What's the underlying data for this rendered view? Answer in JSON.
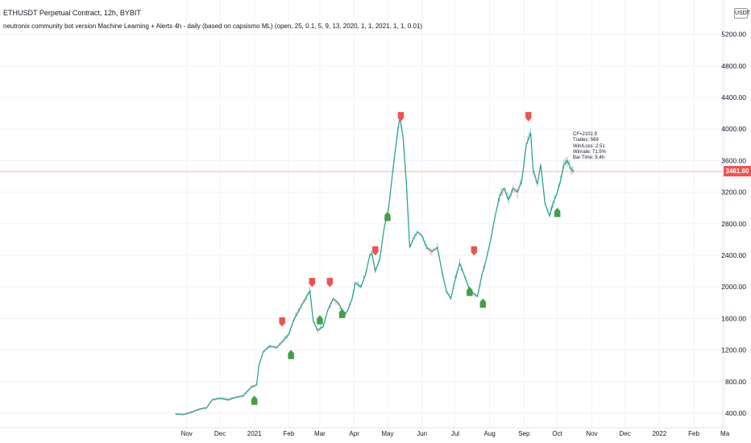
{
  "header": {
    "title": "ETHUSDT Perpetual Contract, 12h, BYBIT",
    "subtitle": "neutronix community bot version Machine Learning + Alerts 4h - daily (based on capsismo ML) (open, 25, 0.1, 5, 9, 13, 2020, 1, 1, 2021, 1, 1, 0.01)"
  },
  "axis": {
    "currency": "USDT",
    "last_price": "3461.60"
  },
  "stats": [
    "CF=2102.9",
    "Trades: 569",
    "Win/Loss: 2.51",
    "Winrate: 71.5%",
    "Bar Time: 5.4h"
  ],
  "colors": {
    "price_line": "#26a69a",
    "candle_down": "#ef5350",
    "sell_marker": "#ef5350",
    "buy_marker": "#43a047",
    "last_price_line": "#ef5350",
    "grid": "#f0f3fa"
  },
  "chart_data": {
    "type": "line",
    "xlabel": "",
    "ylabel": "",
    "ylim": [
      350,
      5250
    ],
    "y_ticks": [
      400,
      800,
      1200,
      1600,
      2000,
      2400,
      2800,
      3200,
      3600,
      4000,
      4400,
      4800,
      5200
    ],
    "y_tick_labels": [
      "400.00",
      "800.00",
      "1200.00",
      "1600.00",
      "2000.00",
      "2400.00",
      "2800.00",
      "3200.00",
      "3600.00",
      "4000.00",
      "4400.00",
      "4800.00",
      "5200.00"
    ],
    "x_ticks": [
      "2020-11-01",
      "2020-12-01",
      "2021-01-01",
      "2021-02-01",
      "2021-03-01",
      "2021-04-01",
      "2021-05-01",
      "2021-06-01",
      "2021-07-01",
      "2021-08-01",
      "2021-09-01",
      "2021-10-01",
      "2021-11-01",
      "2021-12-01",
      "2022-01-01",
      "2022-02-01",
      "2022-03-01"
    ],
    "x_tick_labels": [
      "Nov",
      "Dec",
      "2021",
      "Feb",
      "Mar",
      "Apr",
      "May",
      "Jun",
      "Jul",
      "Aug",
      "Sep",
      "Oct",
      "Nov",
      "Dec",
      "2022",
      "Feb",
      "Ma"
    ],
    "grid": true,
    "last_price": 3461.6,
    "series": [
      {
        "values": [
          [
            "2020-10-22",
            390
          ],
          [
            "2020-10-29",
            385
          ],
          [
            "2020-11-05",
            410
          ],
          [
            "2020-11-12",
            450
          ],
          [
            "2020-11-19",
            470
          ],
          [
            "2020-11-24",
            570
          ],
          [
            "2020-12-01",
            590
          ],
          [
            "2020-12-08",
            570
          ],
          [
            "2020-12-15",
            600
          ],
          [
            "2020-12-22",
            620
          ],
          [
            "2020-12-29",
            730
          ],
          [
            "2021-01-03",
            760
          ],
          [
            "2021-01-05",
            1000
          ],
          [
            "2021-01-09",
            1180
          ],
          [
            "2021-01-15",
            1250
          ],
          [
            "2021-01-21",
            1230
          ],
          [
            "2021-01-27",
            1320
          ],
          [
            "2021-02-01",
            1400
          ],
          [
            "2021-02-06",
            1600
          ],
          [
            "2021-02-12",
            1750
          ],
          [
            "2021-02-18",
            1900
          ],
          [
            "2021-02-20",
            1950
          ],
          [
            "2021-02-23",
            1570
          ],
          [
            "2021-02-27",
            1450
          ],
          [
            "2021-03-04",
            1500
          ],
          [
            "2021-03-08",
            1700
          ],
          [
            "2021-03-13",
            1850
          ],
          [
            "2021-03-18",
            1790
          ],
          [
            "2021-03-23",
            1640
          ],
          [
            "2021-03-26",
            1700
          ],
          [
            "2021-03-30",
            1850
          ],
          [
            "2021-04-02",
            2050
          ],
          [
            "2021-04-07",
            2000
          ],
          [
            "2021-04-11",
            2150
          ],
          [
            "2021-04-15",
            2400
          ],
          [
            "2021-04-17",
            2420
          ],
          [
            "2021-04-20",
            2200
          ],
          [
            "2021-04-24",
            2350
          ],
          [
            "2021-04-28",
            2750
          ],
          [
            "2021-05-02",
            3000
          ],
          [
            "2021-05-06",
            3500
          ],
          [
            "2021-05-09",
            3850
          ],
          [
            "2021-05-12",
            4150
          ],
          [
            "2021-05-15",
            3900
          ],
          [
            "2021-05-18",
            3300
          ],
          [
            "2021-05-21",
            2500
          ],
          [
            "2021-05-24",
            2600
          ],
          [
            "2021-05-28",
            2700
          ],
          [
            "2021-06-01",
            2650
          ],
          [
            "2021-06-05",
            2500
          ],
          [
            "2021-06-10",
            2450
          ],
          [
            "2021-06-15",
            2500
          ],
          [
            "2021-06-19",
            2200
          ],
          [
            "2021-06-23",
            1950
          ],
          [
            "2021-06-27",
            1850
          ],
          [
            "2021-07-01",
            2100
          ],
          [
            "2021-07-05",
            2300
          ],
          [
            "2021-07-09",
            2150
          ],
          [
            "2021-07-13",
            2000
          ],
          [
            "2021-07-17",
            1920
          ],
          [
            "2021-07-21",
            1880
          ],
          [
            "2021-07-25",
            2150
          ],
          [
            "2021-07-29",
            2350
          ],
          [
            "2021-08-02",
            2600
          ],
          [
            "2021-08-06",
            2900
          ],
          [
            "2021-08-10",
            3150
          ],
          [
            "2021-08-14",
            3250
          ],
          [
            "2021-08-18",
            3100
          ],
          [
            "2021-08-22",
            3250
          ],
          [
            "2021-08-26",
            3200
          ],
          [
            "2021-08-30",
            3350
          ],
          [
            "2021-09-03",
            3800
          ],
          [
            "2021-09-07",
            3950
          ],
          [
            "2021-09-09",
            3500
          ],
          [
            "2021-09-13",
            3300
          ],
          [
            "2021-09-16",
            3550
          ],
          [
            "2021-09-20",
            3050
          ],
          [
            "2021-09-24",
            2900
          ],
          [
            "2021-09-27",
            3050
          ],
          [
            "2021-10-01",
            3200
          ],
          [
            "2021-10-04",
            3350
          ],
          [
            "2021-10-07",
            3550
          ],
          [
            "2021-10-10",
            3600
          ],
          [
            "2021-10-13",
            3500
          ],
          [
            "2021-10-16",
            3461.6
          ]
        ]
      }
    ],
    "signals": [
      {
        "type": "buy",
        "date": "2021-01-01",
        "price": 620
      },
      {
        "type": "sell",
        "date": "2021-01-26",
        "price": 1500
      },
      {
        "type": "buy",
        "date": "2021-02-03",
        "price": 1200
      },
      {
        "type": "sell",
        "date": "2021-02-22",
        "price": 2000
      },
      {
        "type": "buy",
        "date": "2021-03-01",
        "price": 1640
      },
      {
        "type": "sell",
        "date": "2021-03-10",
        "price": 2000
      },
      {
        "type": "buy",
        "date": "2021-03-21",
        "price": 1720
      },
      {
        "type": "sell",
        "date": "2021-04-20",
        "price": 2400
      },
      {
        "type": "buy",
        "date": "2021-05-01",
        "price": 2950
      },
      {
        "type": "sell",
        "date": "2021-05-13",
        "price": 4100
      },
      {
        "type": "buy",
        "date": "2021-07-14",
        "price": 2000
      },
      {
        "type": "sell",
        "date": "2021-07-18",
        "price": 2400
      },
      {
        "type": "buy",
        "date": "2021-07-26",
        "price": 1850
      },
      {
        "type": "sell",
        "date": "2021-09-05",
        "price": 4100
      },
      {
        "type": "buy",
        "date": "2021-10-01",
        "price": 3000
      }
    ]
  }
}
